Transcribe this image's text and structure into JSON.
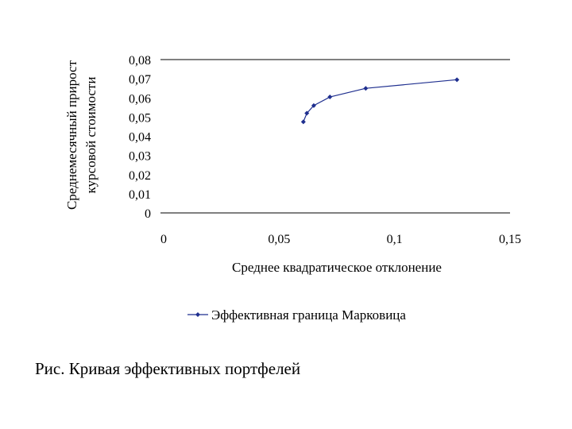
{
  "caption": "Рис. Кривая эффективных портфелей",
  "chart_data": {
    "type": "line",
    "ylabel_lines": [
      "Среднемесячный прирост",
      "курсовой стоимости"
    ],
    "xlabel": "Среднее квадратическое отклонение",
    "x_tick_labels": [
      "0",
      "0,05",
      "0,1",
      "0,15"
    ],
    "x_ticks": [
      0,
      0.05,
      0.1,
      0.15
    ],
    "y_tick_labels": [
      "0,08",
      "0,07",
      "0,06",
      "0,05",
      "0,04",
      "0,03",
      "0,02",
      "0,01",
      "0"
    ],
    "y_ticks": [
      0.08,
      0.07,
      0.06,
      0.05,
      0.04,
      0.03,
      0.02,
      0.01,
      0
    ],
    "xlim": [
      0,
      0.15
    ],
    "ylim": [
      0,
      0.08
    ],
    "grid": "horizontal at 0 and 0.08 only",
    "legend_position": "bottom",
    "series": [
      {
        "name": "Эффективная граница Марковица",
        "color": "#1f2f8f",
        "x": [
          0.0605,
          0.062,
          0.065,
          0.072,
          0.0875,
          0.127
        ],
        "y": [
          0.0475,
          0.052,
          0.056,
          0.0605,
          0.065,
          0.0695
        ]
      }
    ]
  }
}
